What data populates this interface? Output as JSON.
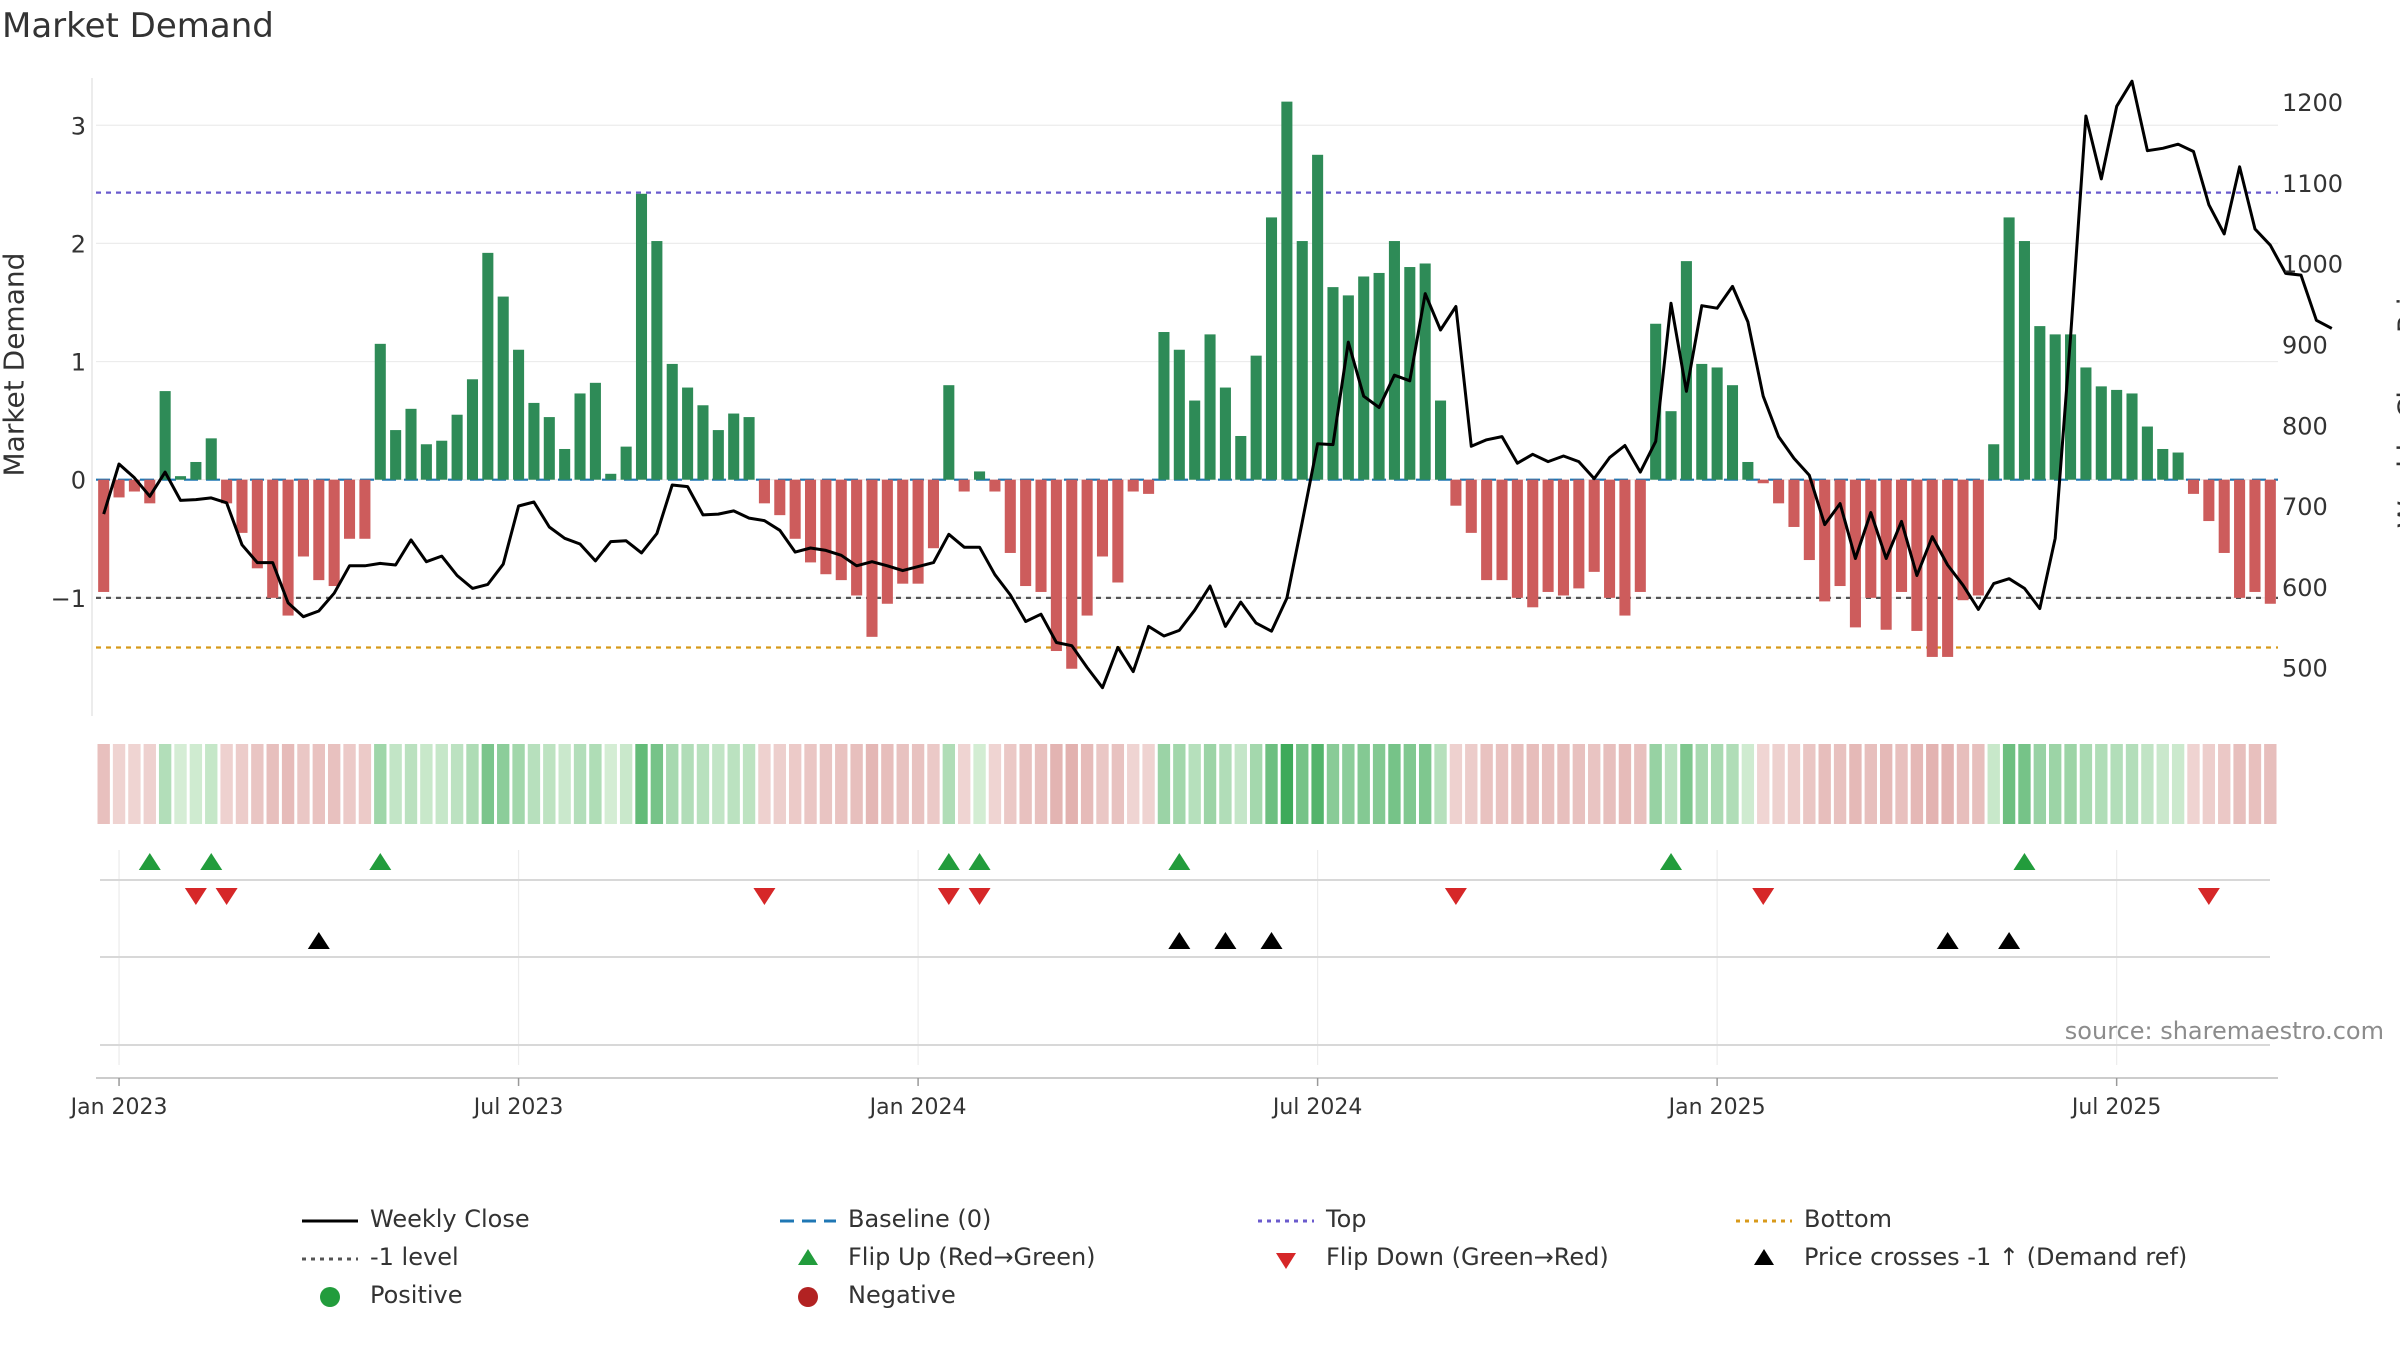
{
  "title": "Market Demand",
  "source": "source: sharemaestro.com",
  "chart_data": {
    "type": "bar",
    "ylabel_left": "Market Demand",
    "ylabel_right": "Weekly Close Price",
    "ylim_left": [
      -2.0,
      3.4
    ],
    "ylim_right": [
      440,
      1230
    ],
    "left_ticks": [
      3,
      2,
      1,
      0,
      -1
    ],
    "left_tick_labels": [
      "3",
      "2",
      "1",
      "0",
      "−1"
    ],
    "right_ticks": [
      1200,
      1100,
      1000,
      900,
      800,
      700,
      600,
      500
    ],
    "x_ticks": [
      "Jan 2023",
      "Jul 2023",
      "Jan 2024",
      "Jul 2024",
      "Jan 2025",
      "Jul 2025"
    ],
    "x_tick_weeks": [
      1,
      27,
      53,
      79,
      105,
      131
    ],
    "levels": {
      "top": 2.43,
      "bottom": -1.42,
      "minus_one": -1.0,
      "baseline": 0
    },
    "demand": [
      -0.95,
      -0.15,
      -0.1,
      -0.2,
      0.75,
      0.03,
      0.15,
      0.35,
      -0.2,
      -0.45,
      -0.75,
      -1.0,
      -1.15,
      -0.65,
      -0.85,
      -0.9,
      -0.5,
      -0.5,
      1.15,
      0.42,
      0.6,
      0.3,
      0.33,
      0.55,
      0.85,
      1.92,
      1.55,
      1.1,
      0.65,
      0.53,
      0.26,
      0.73,
      0.82,
      0.05,
      0.28,
      2.42,
      2.02,
      0.98,
      0.78,
      0.63,
      0.42,
      0.56,
      0.53,
      -0.2,
      -0.3,
      -0.5,
      -0.7,
      -0.8,
      -0.85,
      -0.98,
      -1.33,
      -1.05,
      -0.88,
      -0.88,
      -0.58,
      0.8,
      -0.1,
      0.07,
      -0.1,
      -0.62,
      -0.9,
      -0.95,
      -1.45,
      -1.6,
      -1.15,
      -0.65,
      -0.87,
      -0.1,
      -0.12,
      1.25,
      1.1,
      0.67,
      1.23,
      0.78,
      0.37,
      1.05,
      2.22,
      3.2,
      2.02,
      2.75,
      1.63,
      1.56,
      1.72,
      1.75,
      2.02,
      1.8,
      1.83,
      0.67,
      -0.22,
      -0.45,
      -0.85,
      -0.85,
      -1.0,
      -1.08,
      -0.95,
      -0.98,
      -0.92,
      -0.78,
      -1.0,
      -1.15,
      -0.95,
      1.32,
      0.58,
      1.85,
      0.98,
      0.95,
      0.8,
      0.15,
      -0.03,
      -0.2,
      -0.4,
      -0.68,
      -1.03,
      -0.9,
      -1.25,
      -1.0,
      -1.27,
      -0.95,
      -1.28,
      -1.5,
      -1.5,
      -1.02,
      -0.98,
      0.3,
      2.22,
      2.02,
      1.3,
      1.23,
      1.23,
      0.95,
      0.79,
      0.76,
      0.73,
      0.45,
      0.26,
      0.23,
      -0.12,
      -0.35,
      -0.62,
      -1.0,
      -0.95,
      -1.05
    ],
    "close": [
      690,
      752,
      735,
      712,
      742,
      707,
      708,
      710,
      704,
      652,
      630,
      630,
      580,
      563,
      570,
      592,
      626,
      626,
      629,
      627,
      658,
      631,
      638,
      614,
      598,
      603,
      628,
      700,
      705,
      674,
      660,
      653,
      632,
      656,
      657,
      642,
      666,
      726,
      724,
      689,
      690,
      694,
      685,
      682,
      670,
      643,
      648,
      645,
      639,
      626,
      631,
      626,
      620,
      625,
      630,
      665,
      649,
      649,
      615,
      590,
      557,
      566,
      531,
      527,
      500,
      475,
      525,
      495,
      551,
      539,
      546,
      571,
      601,
      551,
      581,
      555,
      545,
      586,
      680,
      777,
      776,
      903,
      836,
      822,
      862,
      855,
      963,
      918,
      947,
      774,
      782,
      786,
      753,
      764,
      755,
      762,
      755,
      734,
      760,
      775,
      742,
      780,
      951,
      842,
      948,
      945,
      972,
      928,
      836,
      786,
      759,
      738,
      677,
      703,
      635,
      692,
      635,
      681,
      614,
      662,
      627,
      602,
      572,
      604,
      610,
      598,
      573,
      660,
      910,
      1183,
      1105,
      1195,
      1226,
      1140,
      1143,
      1148,
      1139,
      1073,
      1037,
      1120,
      1043,
      1023,
      988,
      986,
      930,
      920
    ]
  },
  "markers": {
    "flip_up_weeks": [
      3,
      7,
      18,
      55,
      57,
      70,
      102,
      125
    ],
    "flip_down_weeks": [
      6,
      8,
      43,
      55,
      57,
      88,
      108,
      137
    ],
    "cross_up_weeks": [
      14,
      70,
      73,
      76,
      120,
      124
    ]
  },
  "legend": [
    {
      "label": "Weekly Close",
      "kind": "line-solid",
      "color": "#000000"
    },
    {
      "label": "Baseline (0)",
      "kind": "line-dashed",
      "color": "#1f77b4"
    },
    {
      "label": "Top",
      "kind": "line-dotted",
      "color": "#6a5acd"
    },
    {
      "label": "Bottom",
      "kind": "line-dotted",
      "color": "#d89a1a"
    },
    {
      "label": "-1 level",
      "kind": "line-dotted",
      "color": "#555555"
    },
    {
      "label": "Flip Up (Red→Green)",
      "kind": "tri-up",
      "color": "#229c3c"
    },
    {
      "label": "Flip Down (Green→Red)",
      "kind": "tri-down",
      "color": "#d62728"
    },
    {
      "label": "Price crosses -1 ↑ (Demand ref)",
      "kind": "tri-up",
      "color": "#000000"
    },
    {
      "label": "Positive",
      "kind": "dot",
      "color": "#229c3c"
    },
    {
      "label": "Negative",
      "kind": "dot",
      "color": "#b22222"
    }
  ],
  "colors": {
    "positive": "#2e8b57",
    "negative": "#cd5c5c",
    "close_line": "#000000"
  }
}
